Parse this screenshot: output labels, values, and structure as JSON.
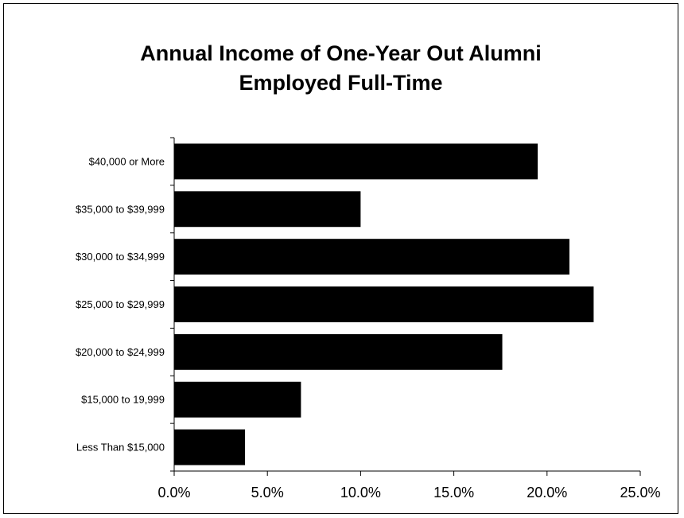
{
  "chart_data": {
    "type": "bar",
    "orientation": "horizontal",
    "title_lines": [
      "Annual Income of One-Year Out Alumni",
      "Employed Full-Time"
    ],
    "categories": [
      "$40,000 or More",
      "$35,000  to $39,999",
      "$30,000 to $34,999",
      "$25,000 to $29,999",
      "$20,000 to $24,999",
      "$15,000 to 19,999",
      "Less Than $15,000"
    ],
    "values": [
      19.5,
      10.0,
      21.2,
      22.5,
      17.6,
      6.8,
      3.8
    ],
    "value_unit": "percent",
    "xlim": [
      0,
      25
    ],
    "xticks": [
      0,
      5,
      10,
      15,
      20,
      25
    ],
    "xtick_labels": [
      "0.0%",
      "5.0%",
      "10.0%",
      "15.0%",
      "20.0%",
      "25.0%"
    ],
    "xlabel": "",
    "ylabel": "",
    "grid": false,
    "legend": "none",
    "bar_color": "#000000"
  }
}
